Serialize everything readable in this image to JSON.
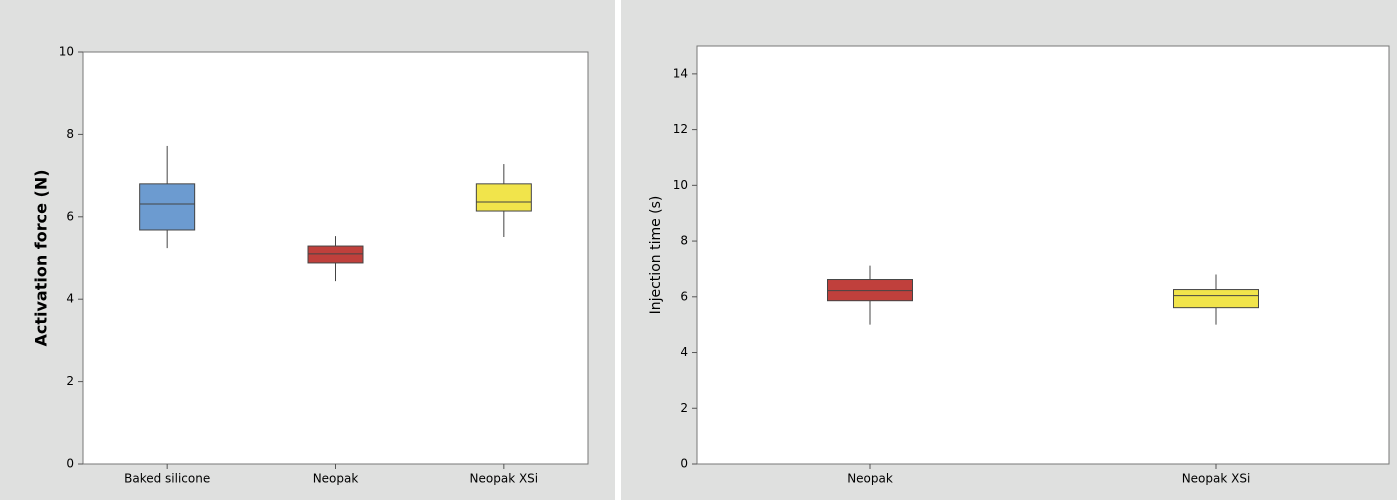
{
  "chart_data": [
    {
      "type": "box",
      "ylabel": "Activation force (N)",
      "categories": [
        "Baked silicone",
        "Neopak",
        "Neopak XSi"
      ],
      "colors": [
        "#6c9bd0",
        "#c0403c",
        "#f1e44b"
      ],
      "boxes": [
        {
          "min": 5.24,
          "q1": 5.68,
          "median": 6.31,
          "q3": 6.8,
          "max": 7.72
        },
        {
          "min": 4.44,
          "q1": 4.88,
          "median": 5.1,
          "q3": 5.29,
          "max": 5.53
        },
        {
          "min": 5.51,
          "q1": 6.14,
          "median": 6.36,
          "q3": 6.8,
          "max": 7.28
        }
      ],
      "ylim": [
        0,
        10
      ],
      "yticks": [
        0,
        2,
        4,
        6,
        8,
        10
      ]
    },
    {
      "type": "box",
      "ylabel": "Injection time (s)",
      "categories": [
        "Neopak",
        "Neopak XSi"
      ],
      "colors": [
        "#c0403c",
        "#f1e44b"
      ],
      "boxes": [
        {
          "min": 5.0,
          "q1": 5.86,
          "median": 6.22,
          "q3": 6.62,
          "max": 7.12
        },
        {
          "min": 5.0,
          "q1": 5.61,
          "median": 6.04,
          "q3": 6.26,
          "max": 6.8
        }
      ],
      "ylim": [
        0,
        15
      ],
      "yticks": [
        0,
        2,
        4,
        6,
        8,
        10,
        12,
        14
      ]
    }
  ]
}
